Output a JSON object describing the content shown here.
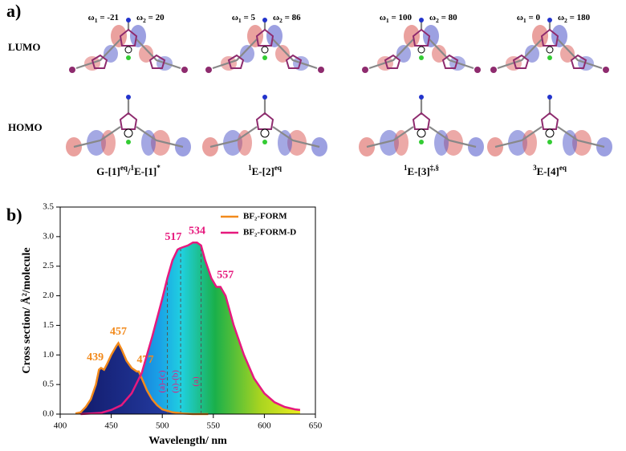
{
  "panel_a": {
    "label": "a)",
    "row_labels": [
      "LUMO",
      "HOMO"
    ],
    "columns": [
      {
        "omega1": {
          "parts": [
            {
              "text": "ω"
            },
            {
              "text": "1",
              "script": "sub"
            },
            {
              "text": " = -21"
            }
          ]
        },
        "omega2": {
          "parts": [
            {
              "text": "ω"
            },
            {
              "text": "2",
              "script": "sub"
            },
            {
              "text": " = 20"
            }
          ]
        },
        "label": {
          "parts": [
            {
              "text": "G-[1]"
            },
            {
              "text": "eq",
              "script": "super"
            },
            {
              "text": "/"
            },
            {
              "text": "1",
              "script": "super"
            },
            {
              "text": "E-[1]"
            },
            {
              "text": "*",
              "script": "super"
            }
          ]
        }
      },
      {
        "omega1": {
          "parts": [
            {
              "text": "ω"
            },
            {
              "text": "1",
              "script": "sub"
            },
            {
              "text": " = 5"
            }
          ]
        },
        "omega2": {
          "parts": [
            {
              "text": "ω"
            },
            {
              "text": "2",
              "script": "sub"
            },
            {
              "text": " = 86"
            }
          ]
        },
        "label": {
          "parts": [
            {
              "text": "1",
              "script": "super"
            },
            {
              "text": "E-[2]"
            },
            {
              "text": "eq",
              "script": "super"
            }
          ]
        }
      },
      {
        "omega1": {
          "parts": [
            {
              "text": "ω"
            },
            {
              "text": "1",
              "script": "sub"
            },
            {
              "text": " = 100"
            }
          ]
        },
        "omega2": {
          "parts": [
            {
              "text": "ω"
            },
            {
              "text": "2",
              "script": "sub"
            },
            {
              "text": " = 80"
            }
          ]
        },
        "label": {
          "parts": [
            {
              "text": "1",
              "script": "super"
            },
            {
              "text": "E-[3]"
            },
            {
              "text": "‡,§",
              "script": "super"
            }
          ]
        }
      },
      {
        "omega1": {
          "parts": [
            {
              "text": "ω"
            },
            {
              "text": "1",
              "script": "sub"
            },
            {
              "text": " = 0"
            }
          ]
        },
        "omega2": {
          "parts": [
            {
              "text": "ω"
            },
            {
              "text": "2",
              "script": "sub"
            },
            {
              "text": " = 180"
            }
          ]
        },
        "label": {
          "parts": [
            {
              "text": "3",
              "script": "super"
            },
            {
              "text": "E-[4]"
            },
            {
              "text": "eq",
              "script": "super"
            }
          ]
        }
      }
    ]
  },
  "chart_data": {
    "type": "line",
    "panel_label": "b)",
    "x_label": "Wavelength/ nm",
    "y_label": "Cross section/ Å²/molecule",
    "xlim": [
      400,
      650
    ],
    "xticks": [
      400,
      450,
      500,
      550,
      600,
      650
    ],
    "ylim": [
      0,
      3.5
    ],
    "yticks": [
      {
        "value": 0,
        "label": "0.0"
      },
      0.5,
      {
        "value": 1,
        "label": "1.0"
      },
      1.5,
      {
        "value": 2,
        "label": "2.0"
      },
      2.5,
      {
        "value": 3,
        "label": "3.0"
      },
      3.5
    ],
    "legend": "upper right",
    "series": [
      {
        "name": "BF₂-FORM",
        "color": "#f28a1c",
        "x": [
          415,
          420,
          425,
          430,
          435,
          438,
          440,
          443,
          446,
          450,
          455,
          457,
          460,
          465,
          470,
          475,
          477,
          480,
          485,
          490,
          495,
          500,
          510,
          520,
          530,
          545
        ],
        "values": [
          0.01,
          0.03,
          0.12,
          0.25,
          0.5,
          0.75,
          0.78,
          0.75,
          0.85,
          1.0,
          1.15,
          1.2,
          1.1,
          0.9,
          0.78,
          0.72,
          0.72,
          0.6,
          0.4,
          0.25,
          0.15,
          0.08,
          0.03,
          0.01,
          0.0,
          0.0
        ],
        "peaks": [
          439,
          457,
          477
        ]
      },
      {
        "name": "BF₂-FORM-D",
        "color": "#e6197d",
        "x": [
          420,
          430,
          440,
          450,
          460,
          470,
          480,
          490,
          500,
          505,
          510,
          515,
          517,
          520,
          525,
          530,
          534,
          538,
          542,
          548,
          553,
          557,
          562,
          570,
          580,
          590,
          600,
          610,
          620,
          630,
          635
        ],
        "values": [
          0.0,
          0.01,
          0.02,
          0.07,
          0.15,
          0.35,
          0.7,
          1.3,
          1.95,
          2.3,
          2.6,
          2.78,
          2.8,
          2.82,
          2.85,
          2.9,
          2.9,
          2.85,
          2.6,
          2.3,
          2.15,
          2.15,
          2.0,
          1.5,
          1.0,
          0.6,
          0.35,
          0.2,
          0.12,
          0.08,
          0.07
        ],
        "peaks": [
          517,
          534,
          557
        ]
      }
    ],
    "markers": [
      {
        "x": 505,
        "label": "(a)-(c)"
      },
      {
        "x": 518,
        "label": "(a)-(b)"
      },
      {
        "x": 538,
        "label": "(a)"
      }
    ]
  }
}
